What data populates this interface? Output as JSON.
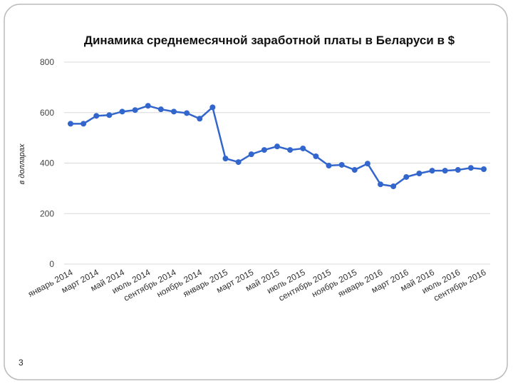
{
  "chart_data": {
    "type": "line",
    "title": "Динамика среднемесячной заработной платы в Беларуси в $",
    "y_label": "в долларах",
    "categories": [
      "январь 2014",
      null,
      "март 2014",
      null,
      "май 2014",
      null,
      "июль 2014",
      null,
      "сентябрь 2014",
      null,
      "ноябрь 2014",
      null,
      "январь 2015",
      null,
      "март 2015",
      null,
      "май 2015",
      null,
      "июль 2015",
      null,
      "сентябрь 2015",
      null,
      "ноябрь 2015",
      null,
      "январь 2016",
      null,
      "март 2016",
      null,
      "май 2016",
      null,
      "июль 2016",
      null,
      "сентябрь 2016"
    ],
    "series": [
      {
        "name": "в долларах",
        "color": "#3366cc",
        "values": [
          556,
          556,
          587,
          590,
          604,
          610,
          627,
          613,
          604,
          598,
          576,
          621,
          418,
          404,
          435,
          452,
          466,
          452,
          458,
          427,
          390,
          393,
          373,
          398,
          316,
          308,
          345,
          359,
          370,
          370,
          373,
          381,
          376
        ]
      }
    ],
    "ylim": [
      0,
      800
    ],
    "yticks": [
      0,
      200,
      400,
      600,
      800
    ],
    "grid": true
  },
  "page_number": "3"
}
